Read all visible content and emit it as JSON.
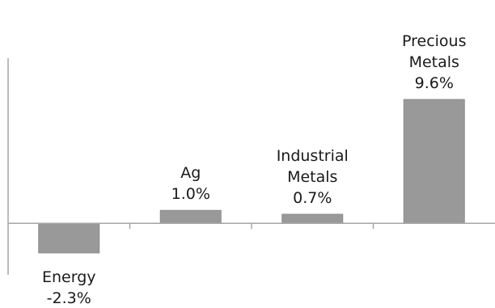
{
  "chart_data": {
    "type": "bar",
    "categories": [
      "Energy",
      "Ag",
      "Industrial Metals",
      "Precious Metals"
    ],
    "label_lines": [
      [
        "Energy"
      ],
      [
        "Ag"
      ],
      [
        "Industrial",
        "Metals"
      ],
      [
        "Precious",
        "Metals"
      ]
    ],
    "values": [
      -2.3,
      1.0,
      0.7,
      9.6
    ],
    "value_labels": [
      "-2.3%",
      "1.0%",
      "0.7%",
      "9.6%"
    ],
    "title": "",
    "xlabel": "",
    "ylabel": "",
    "ylim": [
      -4.0,
      12.8
    ],
    "grid": false,
    "legend": "none",
    "bar_color": "#999999",
    "bar_edge_color": "#8c8c8c",
    "axis_color": "#a6a6a6"
  }
}
